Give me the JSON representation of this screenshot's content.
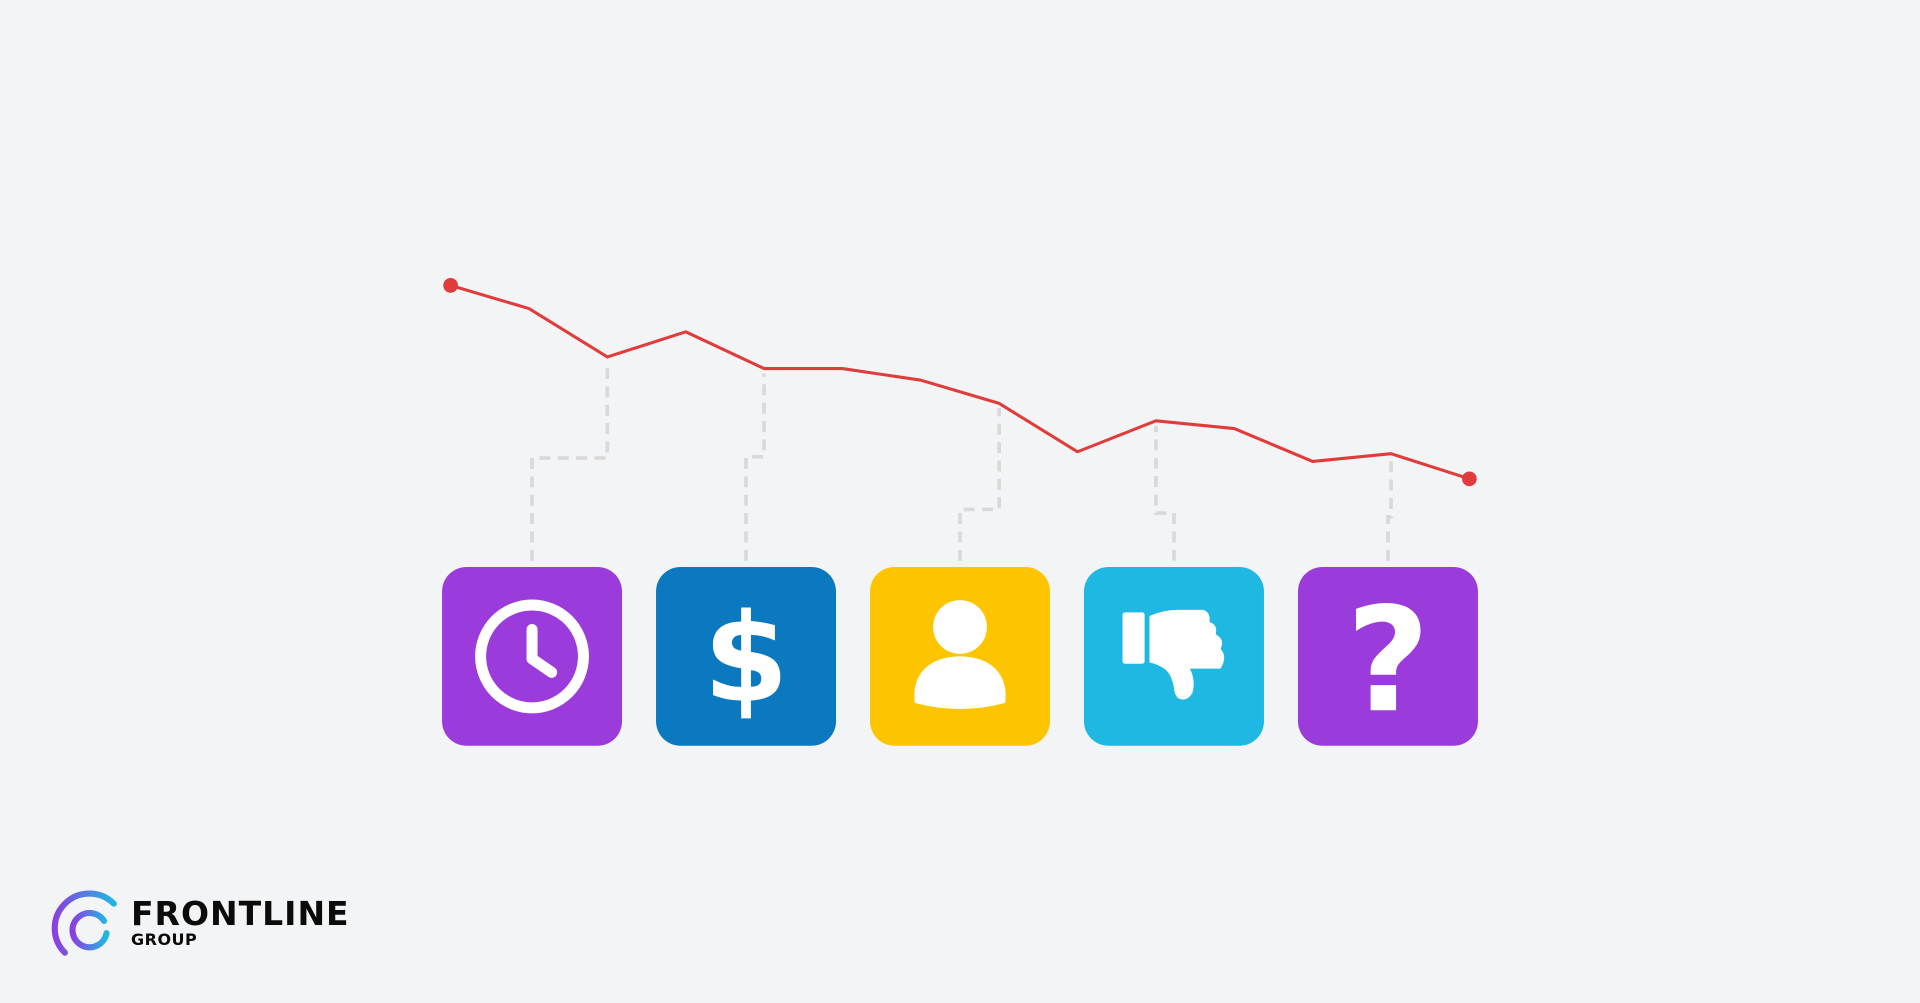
{
  "chart_data": {
    "type": "line",
    "title": "",
    "xlabel": "",
    "ylabel": "",
    "grid": false,
    "series": [
      {
        "values": [
          100,
          88,
          63,
          76,
          57,
          57,
          51,
          39,
          14,
          30,
          26,
          9,
          13,
          0
        ],
        "color": "#e03c3c"
      }
    ],
    "endpoint_markers": true
  },
  "cards": [
    {
      "icon": "clock-icon",
      "color": "#9b3bdb",
      "connects_to_point": 2
    },
    {
      "icon": "dollar-icon",
      "color": "#0a79bf",
      "connects_to_point": 4
    },
    {
      "icon": "user-icon",
      "color": "#fdc500",
      "connects_to_point": 7
    },
    {
      "icon": "thumbs-down-icon",
      "color": "#1fb8e2",
      "connects_to_point": 9
    },
    {
      "icon": "question-icon",
      "color": "#9b3bdb",
      "connects_to_point": 12
    }
  ],
  "logo": {
    "name": "FRONTLINE",
    "sub": "GROUP"
  },
  "colors": {
    "background": "#f3f4f6",
    "line": "#e03c3c",
    "connector": "#d9d9d9"
  }
}
